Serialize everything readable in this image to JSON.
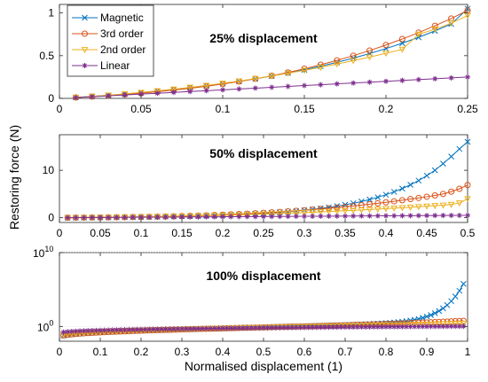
{
  "figure": {
    "ylabel": "Restoring force (N)",
    "xlabel": "Normalised displacement (1)"
  },
  "legend": {
    "entries": [
      "Magnetic",
      "3rd order",
      "2nd order",
      "Linear"
    ]
  },
  "colors": {
    "Magnetic": "#0072BD",
    "3rd order": "#D95319",
    "2nd order": "#EDB120",
    "Linear": "#7E2F8E"
  },
  "chart_data": [
    {
      "type": "line",
      "title": "25% displacement",
      "legend_position": "top-left",
      "x": [
        0.01,
        0.02,
        0.03,
        0.04,
        0.05,
        0.06,
        0.07,
        0.08,
        0.09,
        0.1,
        0.11,
        0.12,
        0.13,
        0.14,
        0.15,
        0.16,
        0.17,
        0.18,
        0.19,
        0.2,
        0.21,
        0.22,
        0.23,
        0.24,
        0.25
      ],
      "xlim": [
        0,
        0.25
      ],
      "ylim": [
        0,
        1.1
      ],
      "xticks": [
        "0",
        "0.05",
        "0.1",
        "0.15",
        "0.2",
        "0.25"
      ],
      "yticks": [
        "0",
        "0.5",
        "1"
      ],
      "series": [
        {
          "name": "Magnetic",
          "marker": "x",
          "values": [
            0.011,
            0.023,
            0.036,
            0.051,
            0.067,
            0.085,
            0.104,
            0.125,
            0.148,
            0.173,
            0.2,
            0.23,
            0.262,
            0.297,
            0.335,
            0.377,
            0.422,
            0.471,
            0.525,
            0.583,
            0.646,
            0.715,
            0.79,
            0.871,
            1.05
          ]
        },
        {
          "name": "3rd order",
          "marker": "o",
          "values": [
            0.01,
            0.021,
            0.033,
            0.046,
            0.061,
            0.078,
            0.097,
            0.118,
            0.142,
            0.168,
            0.197,
            0.229,
            0.265,
            0.304,
            0.347,
            0.394,
            0.445,
            0.5,
            0.56,
            0.625,
            0.695,
            0.77,
            0.85,
            0.935,
            1.03
          ]
        },
        {
          "name": "2nd order",
          "marker": "v",
          "values": [
            0.011,
            0.024,
            0.038,
            0.053,
            0.07,
            0.088,
            0.108,
            0.129,
            0.152,
            0.177,
            0.203,
            0.232,
            0.262,
            0.294,
            0.328,
            0.364,
            0.402,
            0.442,
            0.484,
            0.528,
            0.574,
            0.75,
            0.81,
            0.88,
            0.97
          ]
        },
        {
          "name": "Linear",
          "marker": "*",
          "values": [
            0.01,
            0.02,
            0.03,
            0.04,
            0.05,
            0.06,
            0.07,
            0.08,
            0.09,
            0.1,
            0.11,
            0.12,
            0.13,
            0.14,
            0.15,
            0.16,
            0.17,
            0.18,
            0.19,
            0.2,
            0.21,
            0.22,
            0.23,
            0.24,
            0.25
          ]
        }
      ]
    },
    {
      "type": "line",
      "title": "50% displacement",
      "x": [
        0.01,
        0.02,
        0.03,
        0.04,
        0.05,
        0.06,
        0.07,
        0.08,
        0.09,
        0.1,
        0.11,
        0.12,
        0.13,
        0.14,
        0.15,
        0.16,
        0.17,
        0.18,
        0.19,
        0.2,
        0.21,
        0.22,
        0.23,
        0.24,
        0.25,
        0.26,
        0.27,
        0.28,
        0.29,
        0.3,
        0.31,
        0.32,
        0.33,
        0.34,
        0.35,
        0.36,
        0.37,
        0.38,
        0.39,
        0.4,
        0.41,
        0.42,
        0.43,
        0.44,
        0.45,
        0.46,
        0.47,
        0.48,
        0.49,
        0.5
      ],
      "xlim": [
        0,
        0.5
      ],
      "ylim": [
        -1,
        17.5
      ],
      "xticks": [
        "0",
        "0.05",
        "0.1",
        "0.15",
        "0.2",
        "0.25",
        "0.3",
        "0.35",
        "0.4",
        "0.45",
        "0.5"
      ],
      "yticks": [
        "0",
        "10"
      ],
      "series": [
        {
          "name": "Magnetic",
          "marker": "x",
          "values": [
            0.01,
            0.02,
            0.04,
            0.05,
            0.07,
            0.08,
            0.1,
            0.12,
            0.14,
            0.17,
            0.19,
            0.22,
            0.25,
            0.28,
            0.32,
            0.36,
            0.4,
            0.45,
            0.5,
            0.56,
            0.62,
            0.69,
            0.76,
            0.85,
            0.94,
            1.04,
            1.16,
            1.28,
            1.42,
            1.58,
            1.76,
            1.96,
            2.19,
            2.44,
            2.73,
            3.05,
            3.42,
            3.84,
            4.31,
            4.85,
            5.46,
            6.15,
            6.94,
            7.84,
            8.87,
            10.0,
            11.4,
            12.9,
            14.5,
            16.0
          ]
        },
        {
          "name": "3rd order",
          "marker": "o",
          "values": [
            0.01,
            0.02,
            0.03,
            0.05,
            0.06,
            0.08,
            0.1,
            0.12,
            0.14,
            0.17,
            0.2,
            0.23,
            0.26,
            0.3,
            0.35,
            0.39,
            0.45,
            0.5,
            0.56,
            0.63,
            0.7,
            0.77,
            0.85,
            0.94,
            1.03,
            1.13,
            1.23,
            1.34,
            1.46,
            1.58,
            1.71,
            1.85,
            2.0,
            2.15,
            2.31,
            2.48,
            2.66,
            2.85,
            3.04,
            3.25,
            3.47,
            3.69,
            3.93,
            4.17,
            4.43,
            4.7,
            5.0,
            5.5,
            6.1,
            6.9
          ]
        },
        {
          "name": "2nd order",
          "marker": "v",
          "values": [
            0.01,
            0.02,
            0.04,
            0.05,
            0.07,
            0.09,
            0.11,
            0.13,
            0.15,
            0.18,
            0.2,
            0.23,
            0.26,
            0.29,
            0.33,
            0.36,
            0.4,
            0.44,
            0.48,
            0.53,
            0.57,
            0.62,
            0.67,
            0.73,
            0.78,
            0.84,
            0.9,
            0.96,
            1.03,
            1.09,
            1.16,
            1.23,
            1.31,
            1.39,
            1.47,
            1.55,
            1.64,
            1.73,
            1.82,
            1.91,
            2.01,
            2.11,
            2.21,
            2.32,
            2.43,
            2.54,
            2.65,
            2.8,
            3.1,
            4.0
          ]
        },
        {
          "name": "Linear",
          "marker": "*",
          "values": [
            0.01,
            0.02,
            0.03,
            0.04,
            0.05,
            0.06,
            0.07,
            0.08,
            0.09,
            0.1,
            0.11,
            0.12,
            0.13,
            0.14,
            0.15,
            0.16,
            0.17,
            0.18,
            0.19,
            0.2,
            0.21,
            0.22,
            0.23,
            0.24,
            0.25,
            0.26,
            0.27,
            0.28,
            0.29,
            0.3,
            0.31,
            0.32,
            0.33,
            0.34,
            0.35,
            0.36,
            0.37,
            0.38,
            0.39,
            0.4,
            0.41,
            0.42,
            0.43,
            0.44,
            0.45,
            0.46,
            0.47,
            0.48,
            0.49,
            0.5
          ]
        }
      ]
    },
    {
      "type": "line",
      "title": "100% displacement",
      "yscale": "log",
      "x": [
        0.01,
        0.02,
        0.03,
        0.04,
        0.05,
        0.06,
        0.07,
        0.08,
        0.09,
        0.1,
        0.11,
        0.12,
        0.13,
        0.14,
        0.15,
        0.16,
        0.17,
        0.18,
        0.19,
        0.2,
        0.21,
        0.22,
        0.23,
        0.24,
        0.25,
        0.26,
        0.27,
        0.28,
        0.29,
        0.3,
        0.31,
        0.32,
        0.33,
        0.34,
        0.35,
        0.36,
        0.37,
        0.38,
        0.39,
        0.4,
        0.41,
        0.42,
        0.43,
        0.44,
        0.45,
        0.46,
        0.47,
        0.48,
        0.49,
        0.5,
        0.51,
        0.52,
        0.53,
        0.54,
        0.55,
        0.56,
        0.57,
        0.58,
        0.59,
        0.6,
        0.61,
        0.62,
        0.63,
        0.64,
        0.65,
        0.66,
        0.67,
        0.68,
        0.69,
        0.7,
        0.71,
        0.72,
        0.73,
        0.74,
        0.75,
        0.76,
        0.77,
        0.78,
        0.79,
        0.8,
        0.81,
        0.82,
        0.83,
        0.84,
        0.85,
        0.86,
        0.87,
        0.88,
        0.89,
        0.9,
        0.91,
        0.92,
        0.93,
        0.94,
        0.95,
        0.96,
        0.97,
        0.98,
        0.99
      ],
      "xlim": [
        0,
        1
      ],
      "ylim_log10": [
        -2,
        10
      ],
      "xticks": [
        "0",
        "0.1",
        "0.2",
        "0.3",
        "0.4",
        "0.5",
        "0.6",
        "0.7",
        "0.8",
        "0.9",
        "1"
      ],
      "yticks": [
        "10^0",
        "10^10"
      ],
      "log10_params": {
        "Magnetic": {
          "a": -1.47,
          "b": 1.76,
          "k": 0.42,
          "c": 0.12,
          "j": 4.0,
          "pw": 20
        },
        "3rd order": {
          "a": -1.47,
          "b": 1.76,
          "k": 0.42,
          "c": 0.1,
          "j": 0,
          "pw": 20
        },
        "2nd order": {
          "a": -1.32,
          "b": 1.55,
          "k": 0.4,
          "c": 0.04,
          "j": 0,
          "pw": 20
        },
        "Linear": {
          "a": -0.97,
          "b": 1.0,
          "k": 0.35,
          "c": 0,
          "j": 0,
          "pw": 20
        }
      },
      "series": [
        {
          "name": "Magnetic",
          "marker": "x"
        },
        {
          "name": "3rd order",
          "marker": "o"
        },
        {
          "name": "2nd order",
          "marker": "v"
        },
        {
          "name": "Linear",
          "marker": "*"
        }
      ]
    }
  ]
}
